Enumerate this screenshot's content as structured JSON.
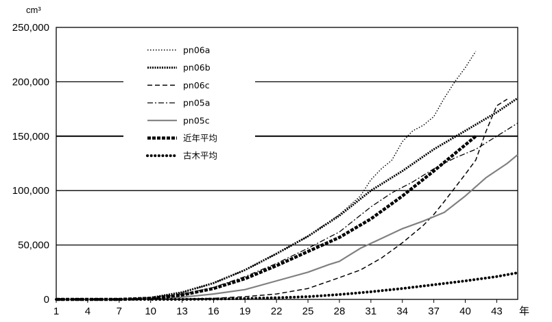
{
  "chart_data": {
    "type": "line",
    "title": "",
    "y_unit_label": "cm³",
    "x_unit_label": "年",
    "ylim": [
      0,
      250000
    ],
    "y_ticks": [
      0,
      50000,
      100000,
      150000,
      200000,
      250000
    ],
    "y_tick_labels": [
      "0",
      "50,000",
      "100,000",
      "150,000",
      "200,000",
      "250,000"
    ],
    "xlim": [
      1,
      45
    ],
    "x_ticks": [
      1,
      4,
      7,
      10,
      13,
      16,
      19,
      22,
      25,
      28,
      31,
      34,
      37,
      40,
      43
    ],
    "x_tick_labels": [
      "1",
      "4",
      "7",
      "10",
      "13",
      "16",
      "19",
      "22",
      "25",
      "28",
      "31",
      "34",
      "37",
      "40",
      "43"
    ],
    "grid": "horizontal",
    "legend_position": "top-left-inside",
    "series": [
      {
        "name": "pn06a",
        "style": "dotted",
        "color": "#000000",
        "points": [
          [
            1,
            0
          ],
          [
            7,
            0
          ],
          [
            10,
            1500
          ],
          [
            13,
            6000
          ],
          [
            16,
            15000
          ],
          [
            19,
            27000
          ],
          [
            22,
            42000
          ],
          [
            25,
            58000
          ],
          [
            28,
            78000
          ],
          [
            30,
            95000
          ],
          [
            31,
            110000
          ],
          [
            32,
            120000
          ],
          [
            33,
            128000
          ],
          [
            34,
            145000
          ],
          [
            35,
            155000
          ],
          [
            36,
            160000
          ],
          [
            37,
            168000
          ],
          [
            38,
            185000
          ],
          [
            39,
            200000
          ],
          [
            40,
            213000
          ],
          [
            41,
            228000
          ]
        ]
      },
      {
        "name": "pn06b",
        "style": "dense-dotted",
        "color": "#000000",
        "points": [
          [
            1,
            0
          ],
          [
            7,
            0
          ],
          [
            10,
            1500
          ],
          [
            13,
            6500
          ],
          [
            16,
            15000
          ],
          [
            19,
            27000
          ],
          [
            22,
            42000
          ],
          [
            25,
            58000
          ],
          [
            28,
            77000
          ],
          [
            31,
            100000
          ],
          [
            34,
            118000
          ],
          [
            37,
            138000
          ],
          [
            40,
            155000
          ],
          [
            43,
            172000
          ],
          [
            45,
            185000
          ]
        ]
      },
      {
        "name": "pn06c",
        "style": "dashed",
        "color": "#000000",
        "points": [
          [
            1,
            0
          ],
          [
            10,
            0
          ],
          [
            13,
            300
          ],
          [
            16,
            1000
          ],
          [
            19,
            2500
          ],
          [
            22,
            5000
          ],
          [
            25,
            10000
          ],
          [
            28,
            20000
          ],
          [
            30,
            27000
          ],
          [
            32,
            38000
          ],
          [
            34,
            52000
          ],
          [
            36,
            68000
          ],
          [
            37,
            78000
          ],
          [
            38,
            90000
          ],
          [
            40,
            115000
          ],
          [
            41,
            128000
          ],
          [
            42,
            155000
          ],
          [
            43,
            178000
          ],
          [
            44,
            184000
          ]
        ]
      },
      {
        "name": "pn05a",
        "style": "dash-dot",
        "color": "#000000",
        "points": [
          [
            1,
            0
          ],
          [
            7,
            0
          ],
          [
            10,
            1000
          ],
          [
            13,
            4500
          ],
          [
            16,
            11000
          ],
          [
            19,
            21000
          ],
          [
            22,
            33000
          ],
          [
            25,
            47000
          ],
          [
            28,
            62000
          ],
          [
            31,
            85000
          ],
          [
            33,
            98000
          ],
          [
            35,
            108000
          ],
          [
            37,
            120000
          ],
          [
            39,
            130000
          ],
          [
            41,
            138000
          ],
          [
            43,
            150000
          ],
          [
            45,
            162000
          ]
        ]
      },
      {
        "name": "pn05c",
        "style": "solid-gray",
        "color": "#808080",
        "points": [
          [
            1,
            0
          ],
          [
            7,
            0
          ],
          [
            10,
            500
          ],
          [
            13,
            2000
          ],
          [
            16,
            5000
          ],
          [
            19,
            9000
          ],
          [
            22,
            17000
          ],
          [
            25,
            25000
          ],
          [
            27,
            32000
          ],
          [
            28,
            35000
          ],
          [
            30,
            47000
          ],
          [
            32,
            56000
          ],
          [
            34,
            65000
          ],
          [
            36,
            72000
          ],
          [
            38,
            80000
          ],
          [
            40,
            95000
          ],
          [
            42,
            112000
          ],
          [
            44,
            125000
          ],
          [
            45,
            133000
          ]
        ]
      },
      {
        "name": "近年平均",
        "style": "thick-dashed",
        "color": "#000000",
        "points": [
          [
            1,
            0
          ],
          [
            7,
            0
          ],
          [
            10,
            1000
          ],
          [
            13,
            4000
          ],
          [
            16,
            10000
          ],
          [
            19,
            19000
          ],
          [
            22,
            31000
          ],
          [
            25,
            44000
          ],
          [
            28,
            57000
          ],
          [
            31,
            74000
          ],
          [
            34,
            95000
          ],
          [
            37,
            118000
          ],
          [
            40,
            142000
          ],
          [
            41,
            150000
          ]
        ]
      },
      {
        "name": "古木平均",
        "style": "thick-dotted",
        "color": "#000000",
        "points": [
          [
            1,
            0
          ],
          [
            13,
            0
          ],
          [
            16,
            300
          ],
          [
            19,
            800
          ],
          [
            22,
            1500
          ],
          [
            25,
            2500
          ],
          [
            28,
            4500
          ],
          [
            31,
            7000
          ],
          [
            34,
            10000
          ],
          [
            37,
            13500
          ],
          [
            40,
            17000
          ],
          [
            43,
            21000
          ],
          [
            45,
            24500
          ]
        ]
      }
    ]
  }
}
